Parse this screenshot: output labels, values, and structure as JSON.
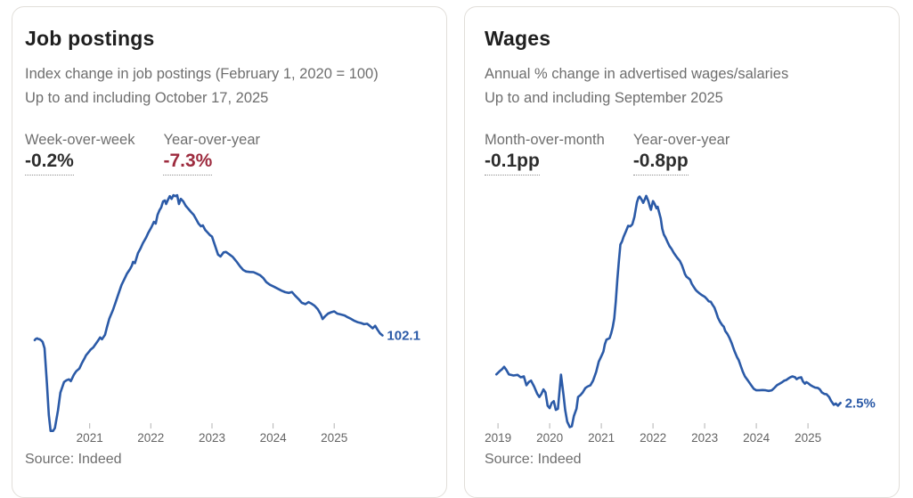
{
  "colors": {
    "line_blue": "#2b5aa7",
    "value_dark": "#2d2d2d",
    "value_red": "#9d2b3e",
    "tick_label": "#646464",
    "tick_mark": "#b3b3b3",
    "card_border": "#e1ded9"
  },
  "cards": [
    {
      "title": "Job postings",
      "subtitle_line1": "Index change in job postings (February 1, 2020 = 100)",
      "subtitle_line2": "Up to and including October 17, 2025",
      "stats": [
        {
          "label": "Week-over-week",
          "value": "-0.2%",
          "value_color": "#2d2d2d"
        },
        {
          "label": "Year-over-year",
          "value": "-7.3%",
          "value_color": "#9d2b3e"
        }
      ],
      "source": "Source: Indeed"
    },
    {
      "title": "Wages",
      "subtitle_line1": "Annual % change in advertised wages/salaries",
      "subtitle_line2": "Up to and including September 2025",
      "stats": [
        {
          "label": "Month-over-month",
          "value": "-0.1pp",
          "value_color": "#2d2d2d"
        },
        {
          "label": "Year-over-year",
          "value": "-0.8pp",
          "value_color": "#2d2d2d"
        }
      ],
      "source": "Source: Indeed"
    }
  ],
  "chart_data": [
    {
      "type": "line",
      "title": "Job postings index",
      "series_name": "Index change in job postings (February 1, 2020 = 100)",
      "line_color": "#2b5aa7",
      "grid": false,
      "legend": "none",
      "x_ticks": [
        2021,
        2022,
        2023,
        2024,
        2025
      ],
      "xlim": [
        2019.94,
        2026.44
      ],
      "ylim": [
        56,
        170
      ],
      "end_label": "102.1",
      "end_value": 102.1,
      "x": [
        2020.1,
        2020.12,
        2020.14,
        2020.16,
        2020.18,
        2020.21,
        2020.23,
        2020.26,
        2020.3,
        2020.33,
        2020.36,
        2020.4,
        2020.43,
        2020.48,
        2020.52,
        2020.58,
        2020.62,
        2020.66,
        2020.69,
        2020.74,
        2020.78,
        2020.83,
        2020.87,
        2020.91,
        2020.94,
        2020.99,
        2021.01,
        2021.06,
        2021.09,
        2021.13,
        2021.17,
        2021.2,
        2021.25,
        2021.28,
        2021.32,
        2021.38,
        2021.42,
        2021.47,
        2021.52,
        2021.57,
        2021.61,
        2021.66,
        2021.69,
        2021.71,
        2021.74,
        2021.79,
        2021.83,
        2021.87,
        2021.92,
        2021.96,
        2022.01,
        2022.05,
        2022.08,
        2022.11,
        2022.14,
        2022.17,
        2022.2,
        2022.23,
        2022.25,
        2022.28,
        2022.31,
        2022.34,
        2022.37,
        2022.4,
        2022.43,
        2022.46,
        2022.49,
        2022.53,
        2022.57,
        2022.61,
        2022.66,
        2022.7,
        2022.74,
        2022.78,
        2022.82,
        2022.85,
        2022.89,
        2022.93,
        2022.97,
        2023.0,
        2023.05,
        2023.1,
        2023.14,
        2023.19,
        2023.23,
        2023.28,
        2023.34,
        2023.4,
        2023.46,
        2023.51,
        2023.56,
        2023.62,
        2023.68,
        2023.73,
        2023.79,
        2023.84,
        2023.89,
        2023.95,
        2024.01,
        2024.08,
        2024.14,
        2024.2,
        2024.26,
        2024.31,
        2024.36,
        2024.42,
        2024.47,
        2024.53,
        2024.58,
        2024.63,
        2024.68,
        2024.73,
        2024.78,
        2024.81,
        2024.85,
        2024.9,
        2024.95,
        2025.0,
        2025.05,
        2025.11,
        2025.17,
        2025.22,
        2025.28,
        2025.33,
        2025.38,
        2025.44,
        2025.49,
        2025.54,
        2025.59,
        2025.63,
        2025.67,
        2025.71,
        2025.75,
        2025.79
      ],
      "y": [
        100,
        100.6,
        100.8,
        100.5,
        100.4,
        99.8,
        99.2,
        96.4,
        80.6,
        66.8,
        59.7,
        59.7,
        60.9,
        68.8,
        76.7,
        81.4,
        82.2,
        82.6,
        81.8,
        84.6,
        86.2,
        87.4,
        89.7,
        91.7,
        93.3,
        94.9,
        95.7,
        96.8,
        98,
        99.6,
        101.2,
        100.4,
        102.4,
        105.5,
        109.5,
        113.4,
        116.6,
        120.6,
        124.5,
        127.3,
        129.6,
        131.6,
        133.2,
        134.8,
        134.2,
        138.7,
        140.7,
        143.1,
        145.5,
        147.8,
        150.2,
        152.6,
        151.8,
        155.7,
        157.7,
        159,
        161.7,
        162.1,
        160.5,
        162.4,
        164,
        162.8,
        164.4,
        164,
        164.4,
        160.5,
        162.8,
        161.7,
        159.7,
        158.5,
        156.9,
        155.7,
        153.8,
        151.8,
        150.6,
        151,
        149,
        147.8,
        146.6,
        146,
        142,
        138,
        137.2,
        139,
        139.2,
        138.2,
        137,
        135,
        132.8,
        131.2,
        130.5,
        130.3,
        130.2,
        129.6,
        128.8,
        127.6,
        125.8,
        124.6,
        123.8,
        122.8,
        122,
        121.3,
        121,
        121.4,
        119.8,
        118.2,
        116.6,
        116,
        116.9,
        116.2,
        115.3,
        113.8,
        111.5,
        109.4,
        110.6,
        111.8,
        112.4,
        112.8,
        111.8,
        111.4,
        111,
        110.2,
        109.4,
        108.6,
        108,
        107.6,
        107.1,
        107.3,
        106.2,
        105.3,
        106.4,
        104.6,
        103,
        102.1
      ]
    },
    {
      "type": "line",
      "title": "Advertised wage growth",
      "series_name": "Annual % change in advertised wages/salaries",
      "line_color": "#2b5aa7",
      "grid": false,
      "legend": "none",
      "x_ticks": [
        2019,
        2020,
        2021,
        2022,
        2023,
        2024,
        2025
      ],
      "xlim": [
        2018.74,
        2026.43
      ],
      "ylim": [
        1.3,
        9.8
      ],
      "end_label": "2.5%",
      "end_value": 2.5,
      "x": [
        2018.97,
        2019.03,
        2019.08,
        2019.12,
        2019.16,
        2019.21,
        2019.3,
        2019.38,
        2019.44,
        2019.5,
        2019.55,
        2019.6,
        2019.64,
        2019.7,
        2019.76,
        2019.8,
        2019.84,
        2019.88,
        2019.92,
        2019.96,
        2020.0,
        2020.04,
        2020.08,
        2020.12,
        2020.16,
        2020.22,
        2020.27,
        2020.3,
        2020.34,
        2020.39,
        2020.43,
        2020.47,
        2020.52,
        2020.55,
        2020.6,
        2020.64,
        2020.69,
        2020.73,
        2020.79,
        2020.84,
        2020.9,
        2020.95,
        2021.0,
        2021.04,
        2021.07,
        2021.1,
        2021.13,
        2021.16,
        2021.19,
        2021.22,
        2021.25,
        2021.28,
        2021.31,
        2021.34,
        2021.37,
        2021.4,
        2021.43,
        2021.48,
        2021.52,
        2021.56,
        2021.6,
        2021.64,
        2021.67,
        2021.69,
        2021.72,
        2021.74,
        2021.78,
        2021.81,
        2021.84,
        2021.87,
        2021.91,
        2021.94,
        2021.96,
        2021.98,
        2022.0,
        2022.03,
        2022.07,
        2022.09,
        2022.12,
        2022.15,
        2022.18,
        2022.21,
        2022.24,
        2022.28,
        2022.32,
        2022.36,
        2022.4,
        2022.44,
        2022.47,
        2022.52,
        2022.56,
        2022.59,
        2022.62,
        2022.65,
        2022.69,
        2022.72,
        2022.75,
        2022.79,
        2022.83,
        2022.86,
        2022.91,
        2022.95,
        2023.0,
        2023.04,
        2023.08,
        2023.12,
        2023.15,
        2023.19,
        2023.23,
        2023.26,
        2023.3,
        2023.34,
        2023.37,
        2023.4,
        2023.44,
        2023.48,
        2023.52,
        2023.55,
        2023.58,
        2023.63,
        2023.66,
        2023.7,
        2023.74,
        2023.78,
        2023.84,
        2023.9,
        2023.95,
        2024.0,
        2024.06,
        2024.12,
        2024.18,
        2024.24,
        2024.3,
        2024.35,
        2024.4,
        2024.45,
        2024.5,
        2024.54,
        2024.58,
        2024.62,
        2024.66,
        2024.7,
        2024.75,
        2024.78,
        2024.82,
        2024.87,
        2024.9,
        2024.94,
        2024.97,
        2025.0,
        2025.05,
        2025.1,
        2025.14,
        2025.19,
        2025.23,
        2025.27,
        2025.32,
        2025.36,
        2025.41,
        2025.45,
        2025.5,
        2025.54,
        2025.58,
        2025.63
      ],
      "y": [
        3.45,
        3.55,
        3.62,
        3.7,
        3.6,
        3.45,
        3.41,
        3.43,
        3.35,
        3.38,
        3.09,
        3.2,
        3.24,
        3.04,
        2.8,
        2.7,
        2.8,
        2.95,
        2.85,
        2.41,
        2.33,
        2.5,
        2.56,
        2.27,
        2.31,
        3.44,
        2.75,
        2.27,
        1.88,
        1.7,
        1.73,
        2.07,
        2.31,
        2.7,
        2.77,
        2.85,
        2.99,
        3.04,
        3.09,
        3.24,
        3.53,
        3.87,
        4.05,
        4.2,
        4.45,
        4.6,
        4.62,
        4.65,
        4.8,
        5.0,
        5.3,
        5.85,
        6.6,
        7.2,
        7.75,
        7.85,
        8.0,
        8.2,
        8.37,
        8.35,
        8.42,
        8.66,
        8.95,
        9.15,
        9.3,
        9.34,
        9.24,
        9.13,
        9.24,
        9.36,
        9.19,
        9.0,
        8.9,
        9.05,
        9.19,
        9.1,
        8.95,
        9.0,
        8.81,
        8.61,
        8.27,
        8.08,
        7.99,
        7.84,
        7.7,
        7.6,
        7.48,
        7.38,
        7.31,
        7.21,
        7.06,
        6.92,
        6.77,
        6.68,
        6.63,
        6.58,
        6.45,
        6.34,
        6.24,
        6.19,
        6.12,
        6.07,
        6.02,
        5.95,
        5.87,
        5.85,
        5.76,
        5.66,
        5.47,
        5.32,
        5.18,
        5.08,
        5.03,
        4.88,
        4.79,
        4.66,
        4.5,
        4.35,
        4.21,
        4.01,
        3.92,
        3.72,
        3.53,
        3.38,
        3.24,
        3.09,
        2.97,
        2.92,
        2.92,
        2.93,
        2.92,
        2.9,
        2.92,
        3.0,
        3.09,
        3.14,
        3.19,
        3.24,
        3.26,
        3.31,
        3.35,
        3.38,
        3.35,
        3.29,
        3.33,
        3.35,
        3.22,
        3.14,
        3.19,
        3.16,
        3.09,
        3.04,
        3.01,
        3.0,
        2.95,
        2.85,
        2.8,
        2.79,
        2.7,
        2.56,
        2.44,
        2.48,
        2.41,
        2.5
      ]
    }
  ]
}
